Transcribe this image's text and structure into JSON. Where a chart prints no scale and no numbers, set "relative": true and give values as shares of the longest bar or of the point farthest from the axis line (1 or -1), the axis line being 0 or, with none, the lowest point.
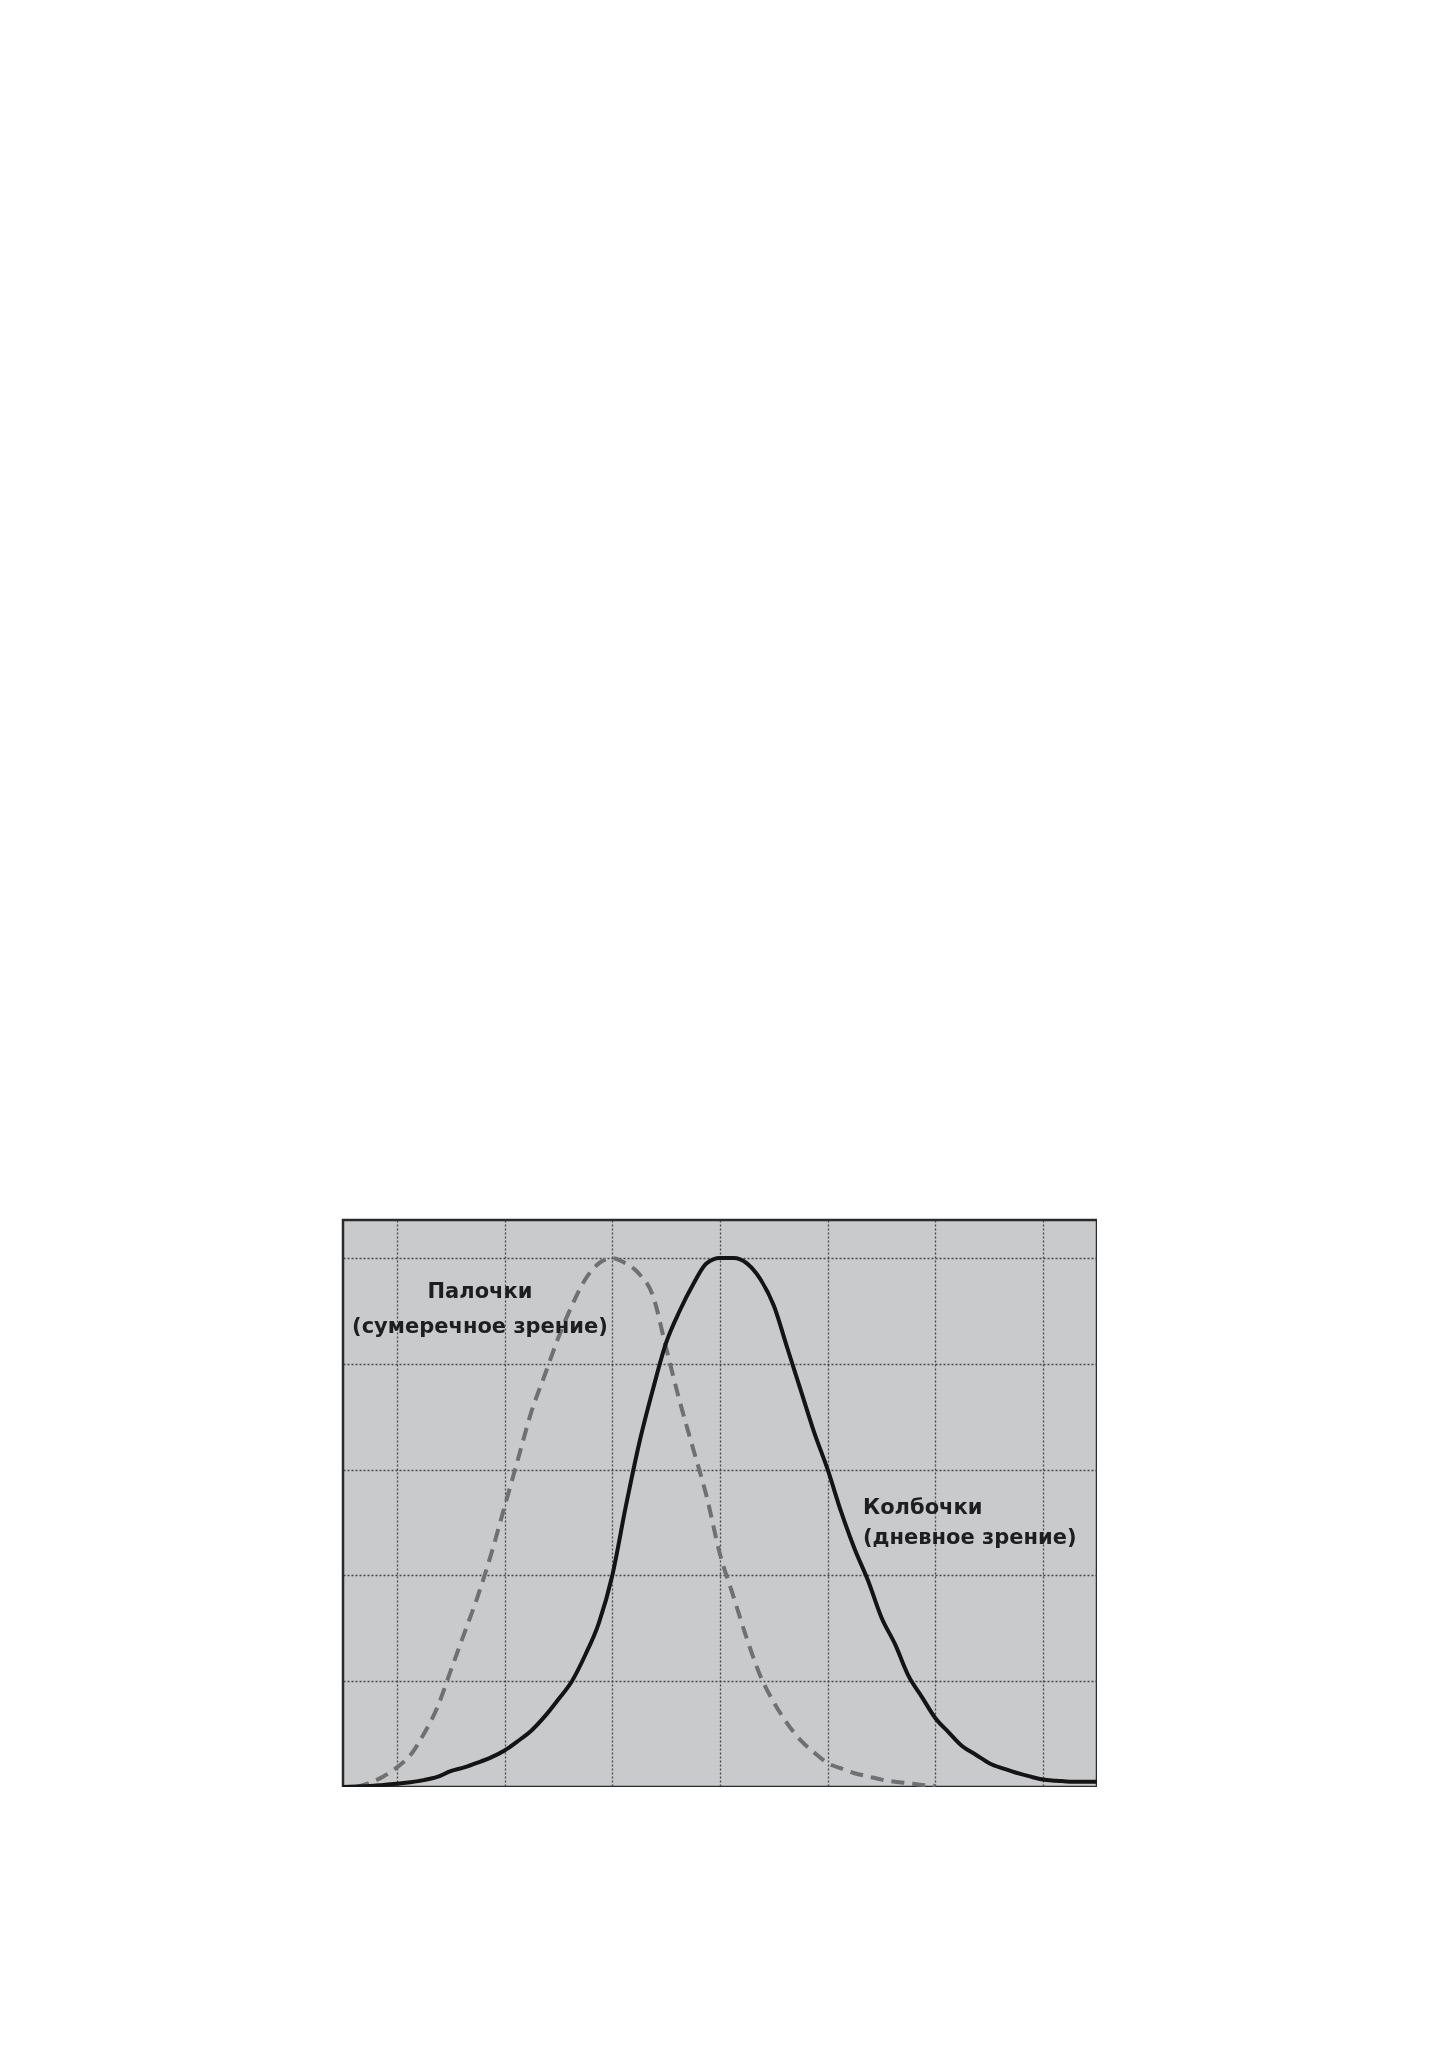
{
  "chart_data": {
    "type": "line",
    "relative": true,
    "grid": true,
    "categories": [
      null,
      null,
      null,
      null,
      null,
      null,
      null,
      null,
      null,
      null,
      null,
      null,
      null,
      null,
      null,
      null,
      null,
      null,
      null,
      null,
      null,
      null,
      null,
      null,
      null,
      null,
      null,
      null,
      null,
      null,
      null,
      null,
      null,
      null,
      null,
      null,
      null,
      null,
      null,
      null,
      null,
      null,
      null,
      null,
      null,
      null,
      null,
      null,
      null,
      null,
      null,
      null,
      null,
      null,
      null,
      null,
      null
    ],
    "series": [
      {
        "name": "Палочки\n(сумеречное зрение)",
        "color": "#707070",
        "line_style": "dashed",
        "values": [
          null,
          0,
          0.008,
          0.02,
          0.037,
          0.06,
          0.1,
          0.15,
          0.22,
          0.29,
          0.36,
          0.44,
          0.53,
          0.62,
          0.71,
          0.78,
          0.85,
          0.91,
          0.96,
          0.99,
          1.0,
          0.99,
          0.97,
          0.93,
          0.83,
          0.73,
          0.64,
          0.55,
          0.44,
          0.36,
          0.28,
          0.21,
          0.16,
          0.12,
          0.088,
          0.065,
          0.045,
          0.035,
          0.026,
          0.02,
          0.014,
          0.01,
          0.007,
          0.004,
          0.002,
          null,
          null,
          null,
          null,
          null,
          null,
          null,
          null,
          null,
          null,
          null,
          null
        ]
      },
      {
        "name": "Колбочки\n(дневное зрение)",
        "color": "#141414",
        "line_style": "solid",
        "values": [
          0,
          0.001,
          0.002,
          0.004,
          0.006,
          0.009,
          0.013,
          0.019,
          0.03,
          0.037,
          0.046,
          0.056,
          0.069,
          0.087,
          0.107,
          0.134,
          0.166,
          0.2,
          0.25,
          0.31,
          0.4,
          0.53,
          0.65,
          0.75,
          0.84,
          0.9,
          0.95,
          0.99,
          1.0,
          1.0,
          0.99,
          0.96,
          0.91,
          0.83,
          0.75,
          0.67,
          0.6,
          0.52,
          0.45,
          0.39,
          0.32,
          0.27,
          0.21,
          0.17,
          0.13,
          0.103,
          0.077,
          0.061,
          0.045,
          0.035,
          0.027,
          0.02,
          0.014,
          0.012,
          0.01,
          0.01,
          0.01
        ]
      }
    ]
  }
}
